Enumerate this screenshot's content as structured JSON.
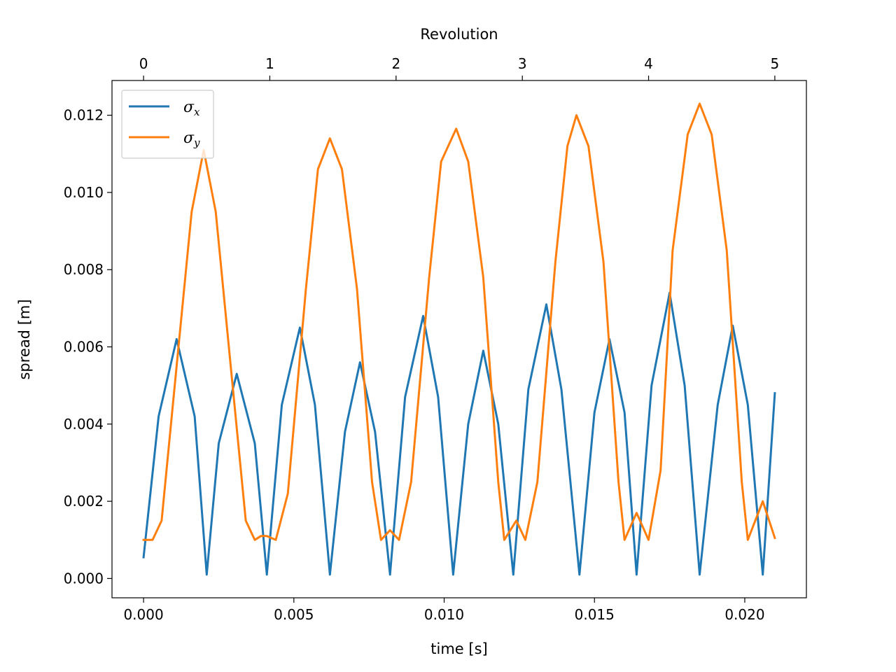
{
  "chart_data": {
    "type": "line",
    "title": "",
    "xlabel": "time [s]",
    "ylabel": "spread [m]",
    "top_xlabel": "Revolution",
    "xlim": [
      -0.00105,
      0.02205
    ],
    "ylim": [
      -0.0005,
      0.0129
    ],
    "xticks": [
      0.0,
      0.005,
      0.01,
      0.015,
      0.02
    ],
    "xtick_labels": [
      "0.000",
      "0.005",
      "0.010",
      "0.015",
      "0.020"
    ],
    "yticks": [
      0.0,
      0.002,
      0.004,
      0.006,
      0.008,
      0.01,
      0.012
    ],
    "ytick_labels": [
      "0.000",
      "0.002",
      "0.004",
      "0.006",
      "0.008",
      "0.010",
      "0.012"
    ],
    "top_ticks": [
      0,
      1,
      2,
      3,
      4,
      5
    ],
    "top_tick_labels": [
      "0",
      "1",
      "2",
      "3",
      "4",
      "5"
    ],
    "top_tick_positions_time": [
      0.0,
      0.0042,
      0.0084,
      0.0126,
      0.0168,
      0.021
    ],
    "grid": false,
    "legend_position": "top-left",
    "series": [
      {
        "name": "σx",
        "legend_main": "σ",
        "legend_sub": "x",
        "color": "#1f77b4",
        "x": [
          0.0,
          0.0005,
          0.0011,
          0.0017,
          0.0021,
          0.0025,
          0.0031,
          0.0037,
          0.0041,
          0.0046,
          0.0052,
          0.0057,
          0.0062,
          0.0067,
          0.0072,
          0.0077,
          0.0082,
          0.0087,
          0.0093,
          0.0098,
          0.0103,
          0.0108,
          0.0113,
          0.0118,
          0.0123,
          0.0128,
          0.0134,
          0.0139,
          0.0145,
          0.015,
          0.0155,
          0.016,
          0.0164,
          0.0169,
          0.0175,
          0.018,
          0.0185,
          0.0191,
          0.0196,
          0.0201,
          0.0206,
          0.021
        ],
        "y": [
          0.00055,
          0.0042,
          0.0062,
          0.0042,
          0.0001,
          0.0035,
          0.0053,
          0.0035,
          0.0001,
          0.0045,
          0.0065,
          0.0045,
          0.0001,
          0.0038,
          0.0056,
          0.0038,
          0.0001,
          0.0047,
          0.0068,
          0.0047,
          0.0001,
          0.004,
          0.0059,
          0.004,
          0.0001,
          0.0049,
          0.0071,
          0.0049,
          0.0001,
          0.0043,
          0.0062,
          0.0043,
          0.0001,
          0.005,
          0.0074,
          0.005,
          0.0001,
          0.0045,
          0.00655,
          0.0045,
          0.0001,
          0.0048
        ]
      },
      {
        "name": "σy",
        "legend_main": "σ",
        "legend_sub": "y",
        "color": "#ff7f0e",
        "x": [
          0.0,
          0.0003,
          0.0006,
          0.0011,
          0.0016,
          0.002,
          0.0024,
          0.0029,
          0.0034,
          0.0037,
          0.0039,
          0.0041,
          0.0044,
          0.0048,
          0.0054,
          0.0058,
          0.0062,
          0.0066,
          0.0071,
          0.0076,
          0.0079,
          0.0082,
          0.0085,
          0.0089,
          0.0095,
          0.0099,
          0.0104,
          0.0108,
          0.0113,
          0.0118,
          0.012,
          0.0124,
          0.0127,
          0.0131,
          0.0137,
          0.0141,
          0.0144,
          0.0148,
          0.0153,
          0.0158,
          0.016,
          0.0164,
          0.0168,
          0.0172,
          0.0176,
          0.0181,
          0.0185,
          0.0189,
          0.0194,
          0.0199,
          0.0201,
          0.0206,
          0.021
        ],
        "y": [
          0.001,
          0.001,
          0.0015,
          0.0055,
          0.0095,
          0.0111,
          0.0095,
          0.0055,
          0.0015,
          0.001,
          0.0011,
          0.0011,
          0.001,
          0.0022,
          0.0075,
          0.0106,
          0.0114,
          0.0106,
          0.0075,
          0.0025,
          0.001,
          0.00125,
          0.001,
          0.0025,
          0.0078,
          0.0108,
          0.01165,
          0.0108,
          0.0078,
          0.0025,
          0.001,
          0.0015,
          0.001,
          0.0025,
          0.0082,
          0.0112,
          0.012,
          0.0112,
          0.0082,
          0.0025,
          0.001,
          0.0017,
          0.001,
          0.0028,
          0.0085,
          0.0115,
          0.0123,
          0.0115,
          0.0085,
          0.0025,
          0.001,
          0.002,
          0.00105
        ]
      }
    ]
  }
}
